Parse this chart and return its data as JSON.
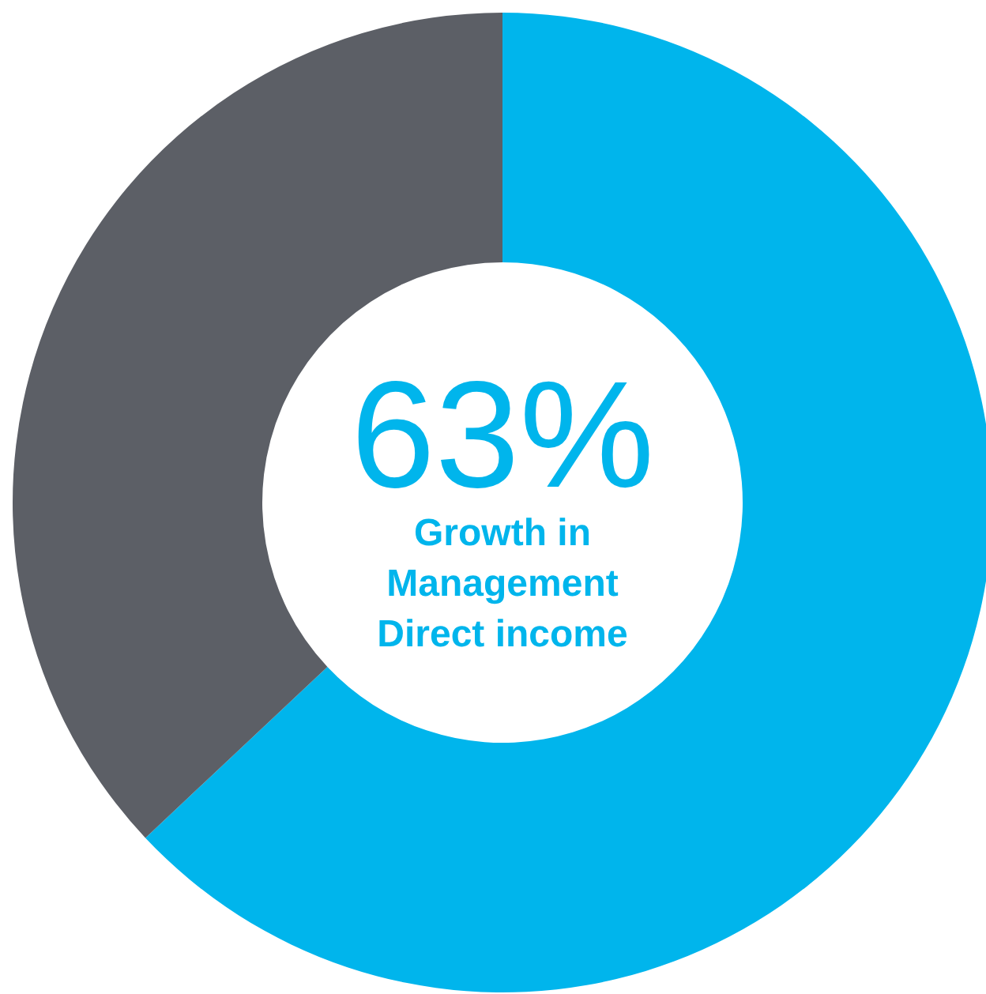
{
  "chart_data": {
    "type": "donut",
    "categories": [
      null,
      null
    ],
    "values": [
      63,
      37
    ],
    "colors": [
      "#00b5ec",
      "#5c5f66"
    ],
    "value_labels": [
      "63%",
      null
    ],
    "annotations": [
      "Growth in Management Direct income"
    ]
  }
}
